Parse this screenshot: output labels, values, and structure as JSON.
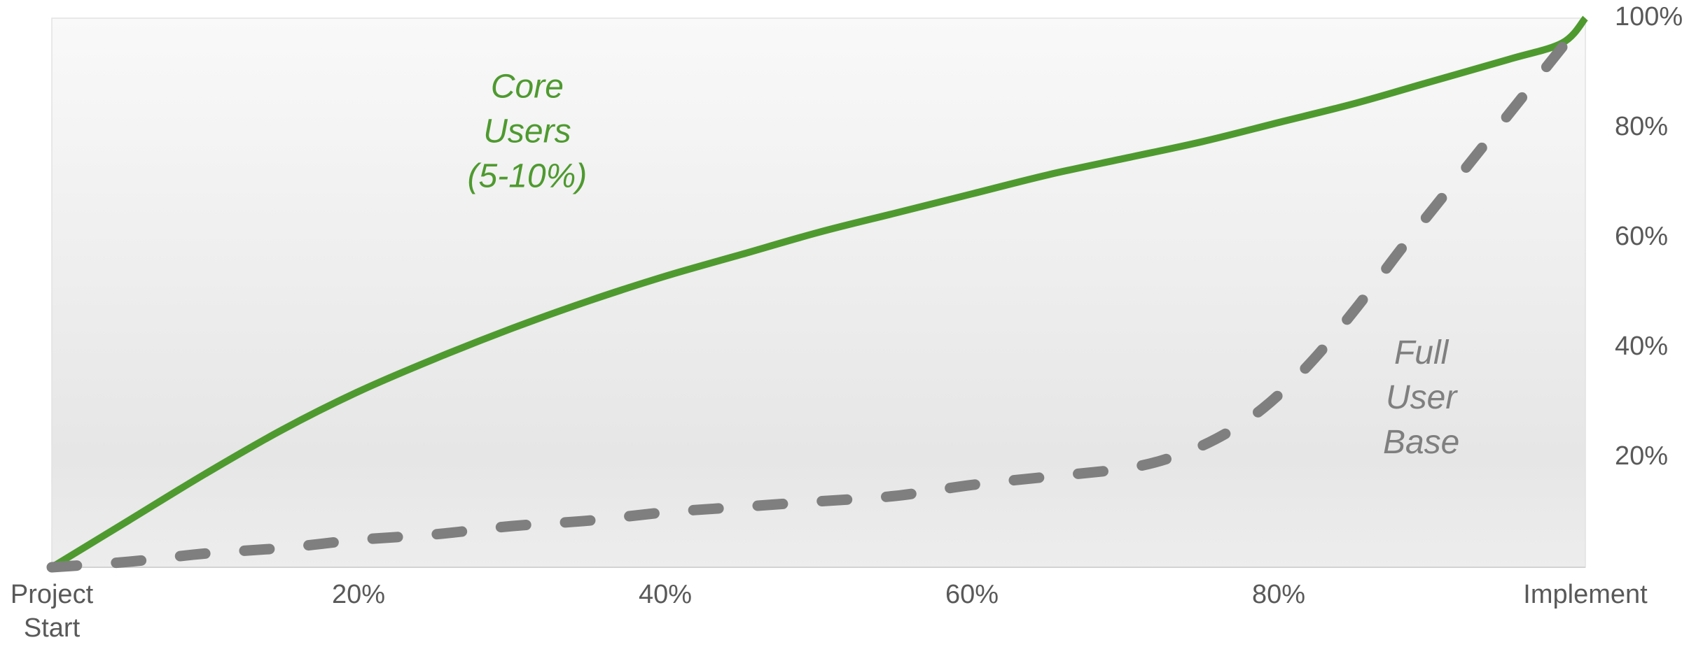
{
  "chart_data": {
    "type": "line",
    "x_ticks": [
      {
        "value": 0,
        "lines": [
          "Project",
          "Start"
        ]
      },
      {
        "value": 20,
        "lines": [
          "20%"
        ]
      },
      {
        "value": 40,
        "lines": [
          "40%"
        ]
      },
      {
        "value": 60,
        "lines": [
          "60%"
        ]
      },
      {
        "value": 80,
        "lines": [
          "80%"
        ]
      },
      {
        "value": 100,
        "lines": [
          "Implement"
        ]
      }
    ],
    "y_ticks": [
      {
        "value": 20,
        "label": "20%"
      },
      {
        "value": 40,
        "label": "40%"
      },
      {
        "value": 60,
        "label": "60%"
      },
      {
        "value": 80,
        "label": "80%"
      },
      {
        "value": 100,
        "label": "100%"
      }
    ],
    "xlim": [
      0,
      100
    ],
    "ylim": [
      0,
      100
    ],
    "grid": false,
    "y_axis_side": "right",
    "series": [
      {
        "name_lines": [
          "Core",
          "Users",
          "(5-10%)"
        ],
        "style": "solid",
        "color": "#4E9A2F",
        "label_at": {
          "x": 31,
          "y": 79
        },
        "x": [
          0,
          5,
          10,
          15,
          20,
          25,
          30,
          35,
          40,
          45,
          50,
          55,
          60,
          65,
          70,
          75,
          80,
          85,
          90,
          95,
          98.5,
          100
        ],
        "y": [
          0,
          8.5,
          17,
          25,
          32,
          38,
          43.5,
          48.5,
          53,
          57,
          61,
          64.5,
          68,
          71.5,
          74.5,
          77.5,
          81,
          84.5,
          88.5,
          92.5,
          95.5,
          100
        ]
      },
      {
        "name_lines": [
          "Full",
          "User",
          "Base"
        ],
        "style": "dashed",
        "color": "#7F7F7F",
        "label_at": {
          "x": 89.3,
          "y": 30.5
        },
        "x": [
          0,
          5,
          10,
          15,
          20,
          25,
          30,
          35,
          40,
          45,
          50,
          55,
          60,
          65,
          70,
          73,
          76,
          79,
          82,
          85,
          88,
          91,
          94,
          97,
          100
        ],
        "y": [
          0,
          1,
          2.5,
          3.5,
          5,
          6,
          7.5,
          8.5,
          10,
          11,
          12,
          13,
          15,
          16.5,
          18,
          20,
          23.5,
          29,
          37,
          47,
          58,
          68.5,
          79,
          89.5,
          100
        ]
      }
    ]
  }
}
